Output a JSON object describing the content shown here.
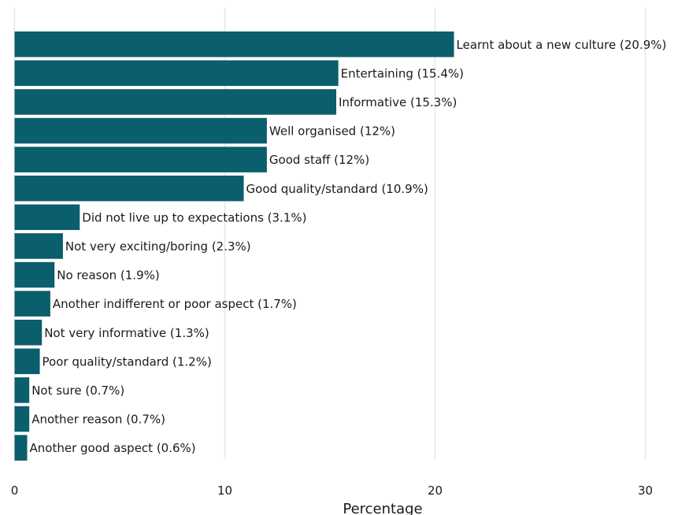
{
  "chart_data": {
    "type": "bar",
    "orientation": "horizontal",
    "title": "",
    "xlabel": "Percentage",
    "ylabel": "",
    "xlim": [
      0,
      32
    ],
    "xticks": [
      0,
      10,
      20,
      30
    ],
    "grid": "vertical major gridlines",
    "bar_color": "#0b5e6b",
    "categories": [
      "Learnt about a new culture",
      "Entertaining",
      "Informative",
      "Well organised",
      "Good staff",
      "Good quality/standard",
      "Did not live up to expectations",
      "Not very exciting/boring",
      "No reason",
      "Another indifferent or poor aspect",
      "Not very informative",
      "Poor quality/standard",
      "Not sure",
      "Another reason",
      "Another good aspect"
    ],
    "values": [
      20.9,
      15.4,
      15.3,
      12,
      12,
      10.9,
      3.1,
      2.3,
      1.9,
      1.7,
      1.3,
      1.2,
      0.7,
      0.7,
      0.6
    ],
    "data_labels": [
      "Learnt about a new culture (20.9%)",
      "Entertaining (15.4%)",
      "Informative (15.3%)",
      "Well organised (12%)",
      "Good staff (12%)",
      "Good quality/standard (10.9%)",
      "Did not live up to expectations (3.1%)",
      "Not very exciting/boring (2.3%)",
      "No reason (1.9%)",
      "Another indifferent or poor aspect (1.7%)",
      "Not very informative (1.3%)",
      "Poor quality/standard (1.2%)",
      "Not sure (0.7%)",
      "Another reason (0.7%)",
      "Another good aspect (0.6%)"
    ]
  }
}
